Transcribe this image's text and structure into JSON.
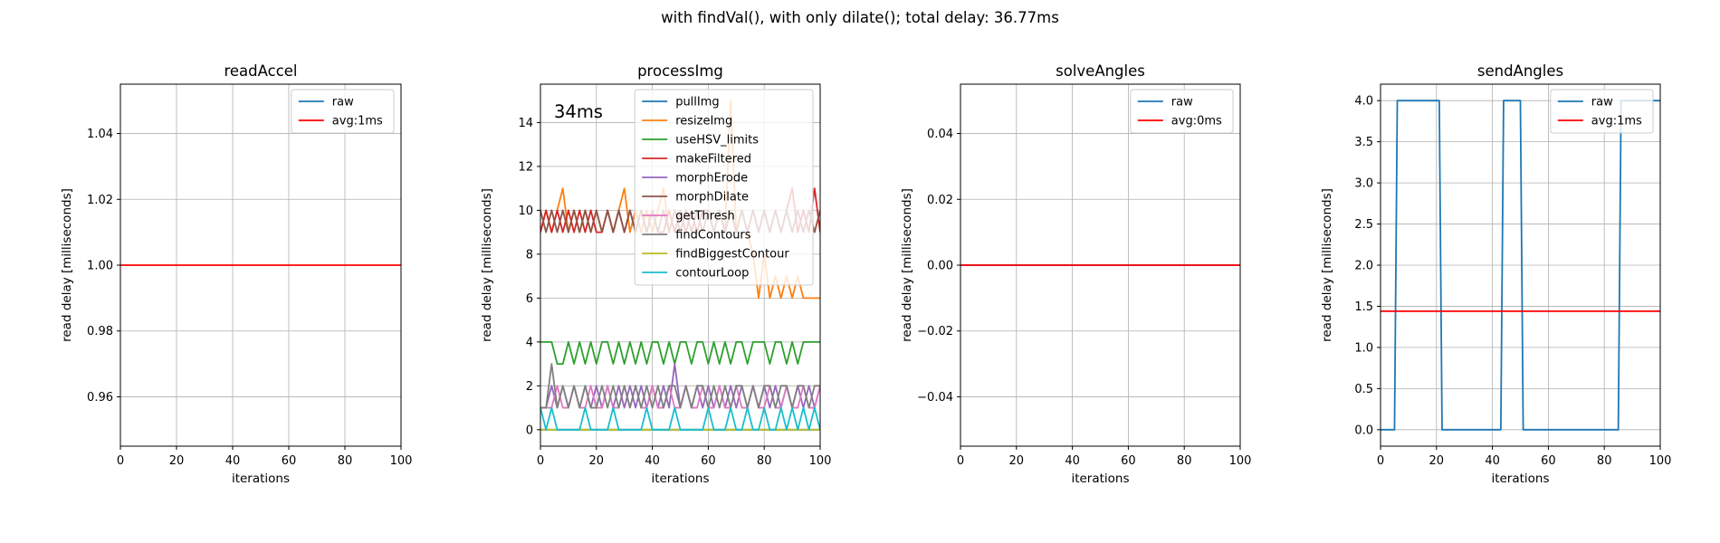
{
  "figure": {
    "suptitle": "with findVal(), with only dilate(); total delay: 36.77ms"
  },
  "chart_data": [
    {
      "type": "line",
      "title": "readAccel",
      "xlabel": "iterations",
      "ylabel": "read delay [milliseconds]",
      "xlim": [
        0,
        100
      ],
      "ylim": [
        0.945,
        1.055
      ],
      "xticks": [
        "0",
        "20",
        "40",
        "60",
        "80",
        "100"
      ],
      "yticks": [
        0.96,
        0.98,
        1.0,
        1.02,
        1.04
      ],
      "ytick_labels": [
        "0.96",
        "0.98",
        "1.00",
        "1.02",
        "1.04"
      ],
      "grid": true,
      "legend": "top-right",
      "series": [
        {
          "name": "raw",
          "color": "#1f77b4",
          "x": [],
          "values": []
        },
        {
          "name": "avg:1ms",
          "color": "#ff0000",
          "hline": 1.0
        }
      ]
    },
    {
      "type": "line",
      "title": "processImg",
      "xlabel": "iterations",
      "ylabel": "read delay [milliseconds]",
      "xlim": [
        0,
        100
      ],
      "ylim": [
        -0.75,
        15.75
      ],
      "xticks": [
        "0",
        "20",
        "40",
        "60",
        "80",
        "100"
      ],
      "yticks": [
        0,
        2,
        4,
        6,
        8,
        10,
        12,
        14
      ],
      "ytick_labels": [
        "0",
        "2",
        "4",
        "6",
        "8",
        "10",
        "12",
        "14"
      ],
      "grid": true,
      "legend": "top-right",
      "annotation": "34ms",
      "series": [
        {
          "name": "pullImg",
          "color": "#1f77b4",
          "x": [
            0,
            100
          ],
          "values": [
            0,
            0
          ]
        },
        {
          "name": "resizeImg",
          "color": "#ff7f0e",
          "x": [
            0,
            2,
            4,
            6,
            8,
            10,
            12,
            14,
            16,
            18,
            20,
            22,
            24,
            26,
            28,
            30,
            32,
            34,
            36,
            38,
            40,
            42,
            44,
            46,
            48,
            50,
            52,
            54,
            56,
            58,
            60,
            62,
            64,
            66,
            68,
            70,
            72,
            74,
            76,
            78,
            80,
            82,
            84,
            86,
            88,
            90,
            92,
            94,
            96,
            98,
            100
          ],
          "values": [
            9,
            10,
            9,
            10,
            11,
            9,
            10,
            9,
            10,
            9,
            10,
            9,
            10,
            9,
            10,
            11,
            9,
            10,
            9,
            10,
            9,
            10,
            11,
            9,
            10,
            9,
            10,
            9,
            10,
            9,
            10,
            9,
            10,
            9,
            15,
            9,
            10,
            9,
            8,
            6,
            8,
            6,
            7,
            6,
            7,
            6,
            7,
            6,
            6,
            6,
            6
          ]
        },
        {
          "name": "useHSV_limits",
          "color": "#2ca02c",
          "x": [
            0,
            2,
            4,
            6,
            8,
            10,
            12,
            14,
            16,
            18,
            20,
            22,
            24,
            26,
            28,
            30,
            32,
            34,
            36,
            38,
            40,
            42,
            44,
            46,
            48,
            50,
            52,
            54,
            56,
            58,
            60,
            62,
            64,
            66,
            68,
            70,
            72,
            74,
            76,
            78,
            80,
            82,
            84,
            86,
            88,
            90,
            92,
            94,
            96,
            98,
            100
          ],
          "values": [
            4,
            4,
            4,
            3,
            3,
            4,
            3,
            4,
            3,
            4,
            3,
            4,
            4,
            3,
            4,
            3,
            4,
            3,
            4,
            3,
            4,
            4,
            3,
            4,
            3,
            4,
            4,
            3,
            4,
            4,
            3,
            4,
            3,
            4,
            3,
            4,
            4,
            3,
            4,
            4,
            4,
            3,
            4,
            4,
            3,
            4,
            3,
            4,
            4,
            4,
            4
          ]
        },
        {
          "name": "makeFiltered",
          "color": "#d62728",
          "x": [
            0,
            2,
            4,
            6,
            8,
            10,
            12,
            14,
            16,
            18,
            20,
            22,
            24,
            26,
            28,
            30,
            32,
            34,
            36,
            38,
            40,
            42,
            44,
            46,
            48,
            50,
            52,
            54,
            56,
            58,
            60,
            62,
            64,
            66,
            68,
            70,
            72,
            74,
            76,
            78,
            80,
            82,
            84,
            86,
            88,
            90,
            92,
            94,
            96,
            98,
            100
          ],
          "values": [
            9,
            10,
            9,
            10,
            9,
            10,
            9,
            10,
            9,
            10,
            9,
            9,
            10,
            9,
            10,
            9,
            10,
            9,
            10,
            9,
            10,
            9,
            9,
            10,
            9,
            10,
            9,
            10,
            9,
            10,
            10,
            9,
            10,
            9,
            10,
            9,
            10,
            9,
            10,
            9,
            10,
            9,
            10,
            9,
            10,
            11,
            9,
            10,
            9,
            11,
            9
          ]
        },
        {
          "name": "morphErode",
          "color": "#9467bd",
          "x": [
            0,
            2,
            4,
            6,
            8,
            10,
            12,
            14,
            16,
            18,
            20,
            22,
            24,
            26,
            28,
            30,
            32,
            34,
            36,
            38,
            40,
            42,
            44,
            46,
            48,
            50,
            52,
            54,
            56,
            58,
            60,
            62,
            64,
            66,
            68,
            70,
            72,
            74,
            76,
            78,
            80,
            82,
            84,
            86,
            88,
            90,
            92,
            94,
            96,
            98,
            100
          ],
          "values": [
            1,
            1,
            2,
            1,
            2,
            1,
            2,
            1,
            2,
            1,
            2,
            1,
            2,
            1,
            2,
            1,
            2,
            1,
            2,
            1,
            2,
            1,
            2,
            1,
            3,
            1,
            2,
            1,
            2,
            1,
            2,
            1,
            2,
            1,
            2,
            1,
            2,
            1,
            2,
            1,
            2,
            1,
            2,
            1,
            2,
            1,
            2,
            1,
            2,
            1,
            2
          ]
        },
        {
          "name": "morphDilate",
          "color": "#8c564b",
          "x": [
            0,
            2,
            4,
            6,
            8,
            10,
            12,
            14,
            16,
            18,
            20,
            22,
            24,
            26,
            28,
            30,
            32,
            34,
            36,
            38,
            40,
            42,
            44,
            46,
            48,
            50,
            52,
            54,
            56,
            58,
            60,
            62,
            64,
            66,
            68,
            70,
            72,
            74,
            76,
            78,
            80,
            82,
            84,
            86,
            88,
            90,
            92,
            94,
            96,
            98,
            100
          ],
          "values": [
            10,
            9,
            10,
            9,
            10,
            9,
            10,
            9,
            10,
            9,
            10,
            9,
            10,
            9,
            10,
            9,
            10,
            9,
            10,
            9,
            10,
            9,
            10,
            9,
            10,
            9,
            10,
            9,
            10,
            9,
            10,
            9,
            10,
            9,
            10,
            9,
            10,
            9,
            10,
            9,
            10,
            9,
            10,
            9,
            10,
            9,
            10,
            9,
            10,
            9,
            10
          ]
        },
        {
          "name": "getThresh",
          "color": "#e377c2",
          "x": [
            0,
            2,
            4,
            6,
            8,
            10,
            12,
            14,
            16,
            18,
            20,
            22,
            24,
            26,
            28,
            30,
            32,
            34,
            36,
            38,
            40,
            42,
            44,
            46,
            48,
            50,
            52,
            54,
            56,
            58,
            60,
            62,
            64,
            66,
            68,
            70,
            72,
            74,
            76,
            78,
            80,
            82,
            84,
            86,
            88,
            90,
            92,
            94,
            96,
            98,
            100
          ],
          "values": [
            1,
            1,
            1,
            2,
            1,
            1,
            2,
            1,
            1,
            2,
            1,
            1,
            2,
            1,
            1,
            2,
            1,
            2,
            1,
            1,
            2,
            1,
            1,
            2,
            1,
            1,
            2,
            1,
            1,
            2,
            1,
            1,
            2,
            1,
            1,
            2,
            1,
            1,
            2,
            1,
            1,
            2,
            1,
            1,
            2,
            1,
            1,
            2,
            1,
            1,
            2
          ]
        },
        {
          "name": "findContours",
          "color": "#7f7f7f",
          "x": [
            0,
            2,
            4,
            6,
            8,
            10,
            12,
            14,
            16,
            18,
            20,
            22,
            24,
            26,
            28,
            30,
            32,
            34,
            36,
            38,
            40,
            42,
            44,
            46,
            48,
            50,
            52,
            54,
            56,
            58,
            60,
            62,
            64,
            66,
            68,
            70,
            72,
            74,
            76,
            78,
            80,
            82,
            84,
            86,
            88,
            90,
            92,
            94,
            96,
            98,
            100
          ],
          "values": [
            1,
            1,
            3,
            1,
            2,
            1,
            2,
            1,
            2,
            1,
            1,
            2,
            1,
            2,
            1,
            2,
            1,
            2,
            1,
            2,
            1,
            2,
            1,
            2,
            2,
            1,
            2,
            1,
            2,
            2,
            1,
            2,
            1,
            2,
            1,
            2,
            2,
            1,
            2,
            1,
            2,
            2,
            1,
            2,
            2,
            1,
            2,
            2,
            1,
            2,
            2
          ]
        },
        {
          "name": "findBiggestContour",
          "color": "#bcbd22",
          "x": [
            0,
            100
          ],
          "values": [
            0,
            0
          ]
        },
        {
          "name": "contourLoop",
          "color": "#17becf",
          "x": [
            0,
            2,
            4,
            6,
            8,
            10,
            12,
            14,
            16,
            18,
            20,
            22,
            24,
            26,
            28,
            30,
            32,
            34,
            36,
            38,
            40,
            42,
            44,
            46,
            48,
            50,
            52,
            54,
            56,
            58,
            60,
            62,
            64,
            66,
            68,
            70,
            72,
            74,
            76,
            78,
            80,
            82,
            84,
            86,
            88,
            90,
            92,
            94,
            96,
            98,
            100
          ],
          "values": [
            1,
            0,
            1,
            0,
            0,
            0,
            0,
            0,
            1,
            0,
            0,
            0,
            0,
            1,
            0,
            0,
            0,
            0,
            0,
            1,
            0,
            0,
            0,
            0,
            1,
            0,
            0,
            0,
            0,
            0,
            1,
            0,
            0,
            0,
            1,
            0,
            0,
            1,
            0,
            0,
            1,
            0,
            0,
            1,
            0,
            1,
            0,
            1,
            0,
            1,
            0
          ]
        }
      ]
    },
    {
      "type": "line",
      "title": "solveAngles",
      "xlabel": "iterations",
      "ylabel": "read delay [milliseconds]",
      "xlim": [
        0,
        100
      ],
      "ylim": [
        -0.055,
        0.055
      ],
      "xticks": [
        "0",
        "20",
        "40",
        "60",
        "80",
        "100"
      ],
      "yticks": [
        -0.04,
        -0.02,
        0.0,
        0.02,
        0.04
      ],
      "ytick_labels": [
        "−0.04",
        "−0.02",
        "0.00",
        "0.02",
        "0.04"
      ],
      "grid": true,
      "legend": "top-right",
      "series": [
        {
          "name": "raw",
          "color": "#1f77b4",
          "x": [
            0,
            100
          ],
          "values": [
            0,
            0
          ]
        },
        {
          "name": "avg:0ms",
          "color": "#ff0000",
          "hline": 0.0
        }
      ]
    },
    {
      "type": "line",
      "title": "sendAngles",
      "xlabel": "iterations",
      "ylabel": "read delay [milliseconds]",
      "xlim": [
        0,
        100
      ],
      "ylim": [
        -0.2,
        4.2
      ],
      "xticks": [
        "0",
        "20",
        "40",
        "60",
        "80",
        "100"
      ],
      "yticks": [
        0,
        0.5,
        1,
        1.5,
        2,
        2.5,
        3,
        3.5,
        4
      ],
      "ytick_labels": [
        "0.0",
        "0.5",
        "1.0",
        "1.5",
        "2.0",
        "2.5",
        "3.0",
        "3.5",
        "4.0"
      ],
      "grid": true,
      "legend": "top-right",
      "series": [
        {
          "name": "raw",
          "color": "#1f77b4",
          "x": [
            0,
            5,
            6,
            21,
            22,
            43,
            44,
            47,
            48,
            50,
            51,
            85,
            86,
            99,
            100
          ],
          "values": [
            0,
            0,
            4,
            4,
            0,
            0,
            4,
            4,
            4,
            4,
            0,
            0,
            4,
            4,
            4
          ]
        },
        {
          "name": "avg:1ms",
          "color": "#ff0000",
          "hline": 1.44
        }
      ]
    }
  ]
}
